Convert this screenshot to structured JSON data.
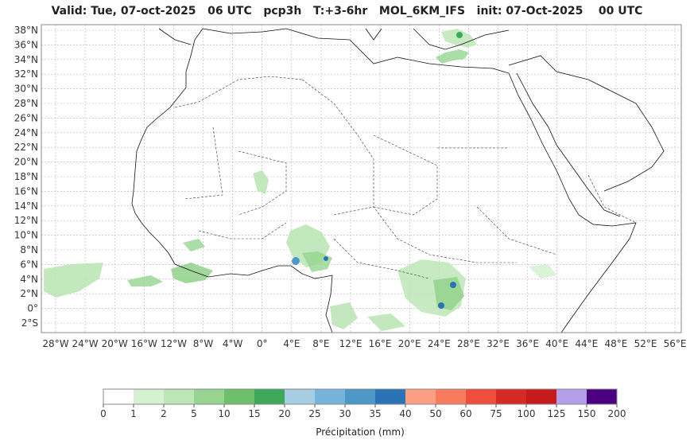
{
  "title": "Valid: Tue, 07-oct-2025   06 UTC   pcp3h   T:+3-6hr   MOL_6KM_IFS   init: 07-Oct-2025    00 UTC",
  "lat_labels": [
    "38°N",
    "36°N",
    "34°N",
    "32°N",
    "30°N",
    "28°N",
    "26°N",
    "24°N",
    "22°N",
    "20°N",
    "18°N",
    "16°N",
    "14°N",
    "12°N",
    "10°N",
    "8°N",
    "6°N",
    "4°N",
    "2°N",
    "0°",
    "2°S"
  ],
  "lon_labels": [
    "28°W",
    "24°W",
    "20°W",
    "16°W",
    "12°W",
    "8°W",
    "4°W",
    "0°",
    "4°E",
    "8°E",
    "12°E",
    "16°E",
    "20°E",
    "24°E",
    "28°E",
    "32°E",
    "36°E",
    "40°E",
    "44°E",
    "48°E",
    "52°E",
    "56°E"
  ],
  "colorbar": {
    "ticks": [
      "0",
      "1",
      "2",
      "5",
      "10",
      "15",
      "20",
      "25",
      "30",
      "35",
      "40",
      "50",
      "60",
      "75",
      "100",
      "125",
      "150",
      "200"
    ],
    "colors": [
      "#ffffff",
      "#d4f2d0",
      "#bde6b7",
      "#96d490",
      "#6ec06c",
      "#3fa95b",
      "#a6cde2",
      "#78b4da",
      "#4d97c9",
      "#2a74b6",
      "#fca085",
      "#f97c5d",
      "#f04d3a",
      "#d62a26",
      "#c51b1c",
      "#b49ee8",
      "#4b0082"
    ],
    "label": "Précipitation (mm)"
  }
}
